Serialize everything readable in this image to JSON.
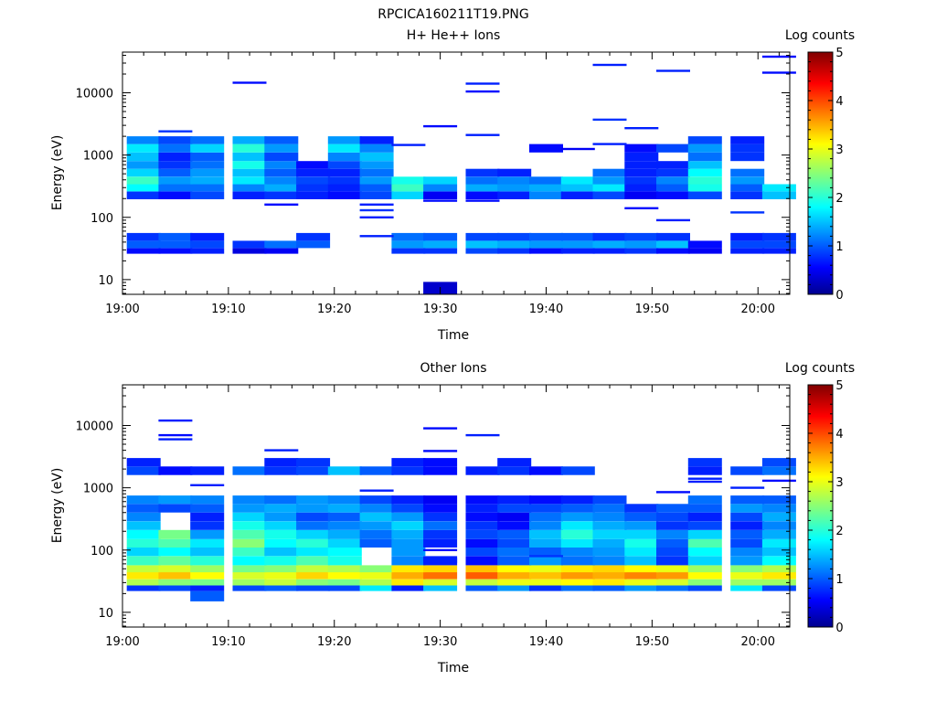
{
  "page": {
    "title": "RPCICA160211T19.PNG"
  },
  "colormap": {
    "name": "jet",
    "stops": [
      "#00008f",
      "#0000ff",
      "#00ffff",
      "#ffff00",
      "#ff0000",
      "#800000"
    ]
  },
  "chart_data": [
    {
      "type": "heatmap",
      "title": "H+ He++ Ions",
      "xlabel": "Time",
      "ylabel": "Energy (eV)",
      "y_scale": "log",
      "xlim": [
        "19:00",
        "20:03"
      ],
      "ylim": [
        5.8,
        45000
      ],
      "x_ticks": [
        "19:00",
        "19:10",
        "19:20",
        "19:30",
        "19:40",
        "19:50",
        "20:00"
      ],
      "y_ticks": [
        "10",
        "100",
        "1000",
        "10000"
      ],
      "colorbar": {
        "label": "Log counts",
        "min": 0,
        "max": 5,
        "ticks": [
          "0",
          "1",
          "2",
          "3",
          "4",
          "5"
        ]
      },
      "time_bins": [
        "19:02",
        "19:05",
        "19:08",
        "19:12",
        "19:15",
        "19:18",
        "19:21",
        "19:24",
        "19:27",
        "19:30",
        "19:34",
        "19:37",
        "19:40",
        "19:43",
        "19:46",
        "19:49",
        "19:52",
        "19:55",
        "19:59",
        "20:02"
      ],
      "energy_bands": [
        {
          "e": [
            26,
            32
          ],
          "v": [
            0.6,
            0.6,
            0.7,
            0.4,
            0.5,
            null,
            null,
            null,
            0.8,
            0.8,
            0.9,
            0.8,
            0.6,
            0.7,
            0.7,
            0.8,
            0.6,
            0.5,
            0.7,
            0.7
          ]
        },
        {
          "e": [
            32,
            42
          ],
          "v": [
            1.0,
            1.0,
            0.9,
            0.8,
            1.1,
            1.0,
            null,
            null,
            1.3,
            1.4,
            1.5,
            1.4,
            1.3,
            1.3,
            1.4,
            1.3,
            1.5,
            0.6,
            0.9,
            0.9
          ]
        },
        {
          "e": [
            42,
            56
          ],
          "v": [
            0.8,
            1.0,
            0.7,
            null,
            null,
            0.8,
            null,
            null,
            1.1,
            1.0,
            0.9,
            0.9,
            1.0,
            1.0,
            0.8,
            0.9,
            0.8,
            null,
            0.7,
            0.8
          ]
        },
        {
          "e": [
            195,
            260
          ],
          "v": [
            0.8,
            0.6,
            0.9,
            0.7,
            0.8,
            0.7,
            0.6,
            0.9,
            1.6,
            0.5,
            0.6,
            0.7,
            1.2,
            0.7,
            0.9,
            0.5,
            0.6,
            0.9,
            0.8,
            1.5
          ]
        },
        {
          "e": [
            260,
            340
          ],
          "v": [
            1.8,
            1.1,
            1.1,
            1.2,
            1.4,
            0.8,
            0.7,
            1.0,
            2.1,
            1.2,
            1.4,
            1.3,
            1.4,
            1.5,
            1.7,
            0.7,
            1.0,
            1.9,
            1.0,
            1.7
          ]
        },
        {
          "e": [
            340,
            450
          ],
          "v": [
            2.1,
            1.3,
            1.4,
            1.7,
            1.2,
            0.9,
            0.8,
            1.3,
            1.9,
            1.6,
            1.1,
            1.2,
            1.1,
            1.7,
            1.3,
            0.8,
            1.2,
            2.0,
            1.3,
            null
          ]
        },
        {
          "e": [
            450,
            600
          ],
          "v": [
            1.6,
            1.0,
            1.3,
            1.5,
            1.0,
            0.7,
            0.7,
            1.1,
            null,
            null,
            0.8,
            0.7,
            null,
            null,
            1.1,
            0.7,
            0.8,
            1.8,
            1.1,
            null
          ]
        },
        {
          "e": [
            600,
            800
          ],
          "v": [
            1.3,
            0.8,
            1.1,
            1.9,
            1.2,
            0.6,
            0.9,
            1.3,
            null,
            null,
            null,
            null,
            null,
            null,
            null,
            0.7,
            0.7,
            1.5,
            null,
            null
          ]
        },
        {
          "e": [
            800,
            1100
          ],
          "v": [
            1.5,
            0.7,
            1.0,
            1.5,
            0.9,
            null,
            1.2,
            1.5,
            null,
            null,
            null,
            null,
            null,
            null,
            null,
            0.7,
            null,
            1.1,
            0.8,
            null
          ]
        },
        {
          "e": [
            1100,
            1500
          ],
          "v": [
            1.7,
            1.1,
            1.6,
            2.0,
            1.3,
            null,
            1.7,
            1.2,
            null,
            null,
            null,
            null,
            0.6,
            null,
            null,
            0.6,
            0.9,
            1.3,
            0.8,
            null
          ]
        },
        {
          "e": [
            1500,
            2000
          ],
          "v": [
            1.2,
            0.9,
            1.1,
            1.4,
            1.0,
            null,
            1.3,
            0.7,
            null,
            null,
            null,
            null,
            null,
            null,
            null,
            null,
            null,
            0.9,
            0.7,
            null
          ]
        }
      ],
      "lines": [
        {
          "t": "19:05",
          "e": 2400,
          "v": 0.8
        },
        {
          "t": "19:12",
          "e": 14500,
          "v": 0.6
        },
        {
          "t": "19:30",
          "e": 2900,
          "v": 0.6
        },
        {
          "t": "19:34",
          "e": 14000,
          "v": 0.7
        },
        {
          "t": "19:34",
          "e": 10500,
          "v": 0.6
        },
        {
          "t": "19:34",
          "e": 2100,
          "v": 0.7
        },
        {
          "t": "19:46",
          "e": 28000,
          "v": 0.7
        },
        {
          "t": "19:46",
          "e": 3700,
          "v": 0.8
        },
        {
          "t": "19:46",
          "e": 1500,
          "v": 0.7
        },
        {
          "t": "19:49",
          "e": 2700,
          "v": 0.7
        },
        {
          "t": "19:52",
          "e": 22500,
          "v": 0.7
        },
        {
          "t": "19:59",
          "e": 120,
          "v": 0.8
        },
        {
          "t": "20:02",
          "e": 38000,
          "v": 0.6
        },
        {
          "t": "20:02",
          "e": 21000,
          "v": 0.6
        },
        {
          "t": "19:24",
          "e": 130,
          "v": 0.8
        },
        {
          "t": "19:24",
          "e": 100,
          "v": 0.7
        },
        {
          "t": "19:27",
          "e": 1450,
          "v": 0.7
        },
        {
          "t": "19:43",
          "e": 1250,
          "v": 0.5
        },
        {
          "t": "19:49",
          "e": 140,
          "v": 0.6
        },
        {
          "t": "19:52",
          "e": 90,
          "v": 0.7
        },
        {
          "t": "19:30",
          "e": 185,
          "v": 0.6
        },
        {
          "t": "19:34",
          "e": 185,
          "v": 0.6
        },
        {
          "t": "19:15",
          "e": 160,
          "v": 0.6
        },
        {
          "t": "19:24",
          "e": 160,
          "v": 0.7
        },
        {
          "t": "19:24",
          "e": 50,
          "v": 0.7
        }
      ],
      "patches": [
        {
          "t": "19:30",
          "e": [
            5.8,
            9.2
          ],
          "v": 0.3
        }
      ]
    },
    {
      "type": "heatmap",
      "title": "Other Ions",
      "xlabel": "Time",
      "ylabel": "Energy (eV)",
      "y_scale": "log",
      "xlim": [
        "19:00",
        "20:03"
      ],
      "ylim": [
        5.8,
        45000
      ],
      "x_ticks": [
        "19:00",
        "19:10",
        "19:20",
        "19:30",
        "19:40",
        "19:50",
        "20:00"
      ],
      "y_ticks": [
        "10",
        "100",
        "1000",
        "10000"
      ],
      "colorbar": {
        "label": "Log counts",
        "min": 0,
        "max": 5,
        "ticks": [
          "0",
          "1",
          "2",
          "3",
          "4",
          "5"
        ]
      },
      "time_bins": [
        "19:02",
        "19:05",
        "19:08",
        "19:12",
        "19:15",
        "19:18",
        "19:21",
        "19:24",
        "19:27",
        "19:30",
        "19:34",
        "19:37",
        "19:40",
        "19:43",
        "19:46",
        "19:49",
        "19:52",
        "19:55",
        "19:59",
        "20:02"
      ],
      "energy_bands": [
        {
          "e": [
            22,
            27
          ],
          "v": [
            0.8,
            0.9,
            0.7,
            0.9,
            1.0,
            0.9,
            0.9,
            1.7,
            0.7,
            1.5,
            1.0,
            1.3,
            0.8,
            1.1,
            1.0,
            1.3,
            1.1,
            0.9,
            1.7,
            0.9
          ]
        },
        {
          "e": [
            27,
            34
          ],
          "v": [
            2.7,
            2.5,
            2.4,
            2.6,
            2.8,
            2.5,
            2.4,
            2.7,
            3.2,
            2.9,
            2.8,
            3.0,
            3.0,
            3.1,
            3.2,
            3.0,
            2.9,
            2.5,
            2.6,
            2.6
          ]
        },
        {
          "e": [
            34,
            44
          ],
          "v": [
            3.2,
            3.4,
            3.1,
            2.9,
            3.0,
            3.3,
            3.1,
            3.0,
            3.5,
            3.8,
            3.9,
            3.5,
            3.4,
            3.6,
            3.5,
            3.7,
            3.6,
            3.1,
            3.0,
            3.2
          ]
        },
        {
          "e": [
            44,
            57
          ],
          "v": [
            2.8,
            2.9,
            2.6,
            2.4,
            2.5,
            2.8,
            2.7,
            2.5,
            3.2,
            3.3,
            3.4,
            3.1,
            3.0,
            3.2,
            3.3,
            3.1,
            3.0,
            2.6,
            2.5,
            2.7
          ]
        },
        {
          "e": [
            57,
            80
          ],
          "v": [
            2.1,
            2.3,
            2.0,
            1.8,
            1.9,
            2.2,
            1.9,
            null,
            1.2,
            0.7,
            0.6,
            1.0,
            1.3,
            1.1,
            1.2,
            1.5,
            0.8,
            1.6,
            1.3,
            1.8
          ]
        },
        {
          "e": [
            80,
            110
          ],
          "v": [
            1.6,
            1.8,
            1.5,
            2.1,
            1.5,
            1.7,
            1.8,
            null,
            1.3,
            null,
            0.9,
            1.1,
            1.0,
            1.2,
            1.3,
            1.7,
            0.9,
            1.8,
            1.2,
            1.5
          ]
        },
        {
          "e": [
            110,
            150
          ],
          "v": [
            2.0,
            2.2,
            1.7,
            2.5,
            1.8,
            2.0,
            1.6,
            1.0,
            1.3,
            0.7,
            0.6,
            0.9,
            1.4,
            1.7,
            1.4,
            1.9,
            1.0,
            2.2,
            0.9,
            1.7
          ]
        },
        {
          "e": [
            150,
            210
          ],
          "v": [
            1.8,
            2.4,
            1.3,
            2.2,
            1.9,
            1.6,
            1.4,
            1.1,
            1.4,
            0.8,
            0.9,
            1.0,
            1.5,
            2.0,
            1.6,
            1.6,
            1.2,
            1.6,
            1.0,
            1.4
          ]
        },
        {
          "e": [
            210,
            290
          ],
          "v": [
            1.5,
            null,
            0.8,
            1.9,
            1.6,
            1.1,
            1.2,
            1.3,
            1.6,
            1.1,
            0.8,
            0.6,
            1.2,
            1.7,
            1.4,
            1.3,
            0.8,
            0.9,
            0.7,
            1.2
          ]
        },
        {
          "e": [
            290,
            400
          ],
          "v": [
            1.2,
            null,
            0.7,
            1.6,
            1.3,
            0.9,
            1.0,
            1.5,
            1.3,
            0.8,
            0.6,
            0.5,
            1.1,
            1.3,
            1.2,
            1.0,
            0.9,
            0.7,
            0.9,
            1.4
          ]
        },
        {
          "e": [
            400,
            550
          ],
          "v": [
            1.0,
            0.9,
            1.0,
            1.3,
            1.4,
            1.3,
            1.4,
            1.2,
            0.9,
            0.6,
            0.7,
            0.9,
            0.9,
            1.0,
            1.1,
            0.8,
            1.0,
            1.0,
            1.3,
            1.2
          ]
        },
        {
          "e": [
            550,
            750
          ],
          "v": [
            1.2,
            1.3,
            1.2,
            1.2,
            1.1,
            1.3,
            1.2,
            0.9,
            0.7,
            0.5,
            0.6,
            0.7,
            0.6,
            0.7,
            0.9,
            null,
            null,
            1.1,
            1.0,
            1.0
          ]
        },
        {
          "e": [
            1600,
            2200
          ],
          "v": [
            0.9,
            0.6,
            0.7,
            1.1,
            0.8,
            0.9,
            1.5,
            1.0,
            0.8,
            0.6,
            0.7,
            0.8,
            0.6,
            0.9,
            null,
            null,
            null,
            0.7,
            0.9,
            1.1
          ]
        },
        {
          "e": [
            2200,
            3000
          ],
          "v": [
            0.7,
            null,
            null,
            null,
            0.7,
            0.8,
            null,
            null,
            0.7,
            0.6,
            null,
            0.7,
            null,
            null,
            null,
            null,
            null,
            0.8,
            null,
            0.9
          ]
        }
      ],
      "lines": [
        {
          "t": "19:05",
          "e": 12000,
          "v": 0.7
        },
        {
          "t": "19:05",
          "e": 7000,
          "v": 0.6
        },
        {
          "t": "19:05",
          "e": 6000,
          "v": 0.7
        },
        {
          "t": "19:15",
          "e": 4000,
          "v": 0.7
        },
        {
          "t": "19:30",
          "e": 9000,
          "v": 0.6
        },
        {
          "t": "19:30",
          "e": 3900,
          "v": 0.6
        },
        {
          "t": "19:34",
          "e": 7000,
          "v": 0.7
        },
        {
          "t": "19:40",
          "e": 80,
          "v": 0.8
        },
        {
          "t": "19:30",
          "e": 100,
          "v": 0.6
        },
        {
          "t": "19:52",
          "e": 850,
          "v": 0.6
        },
        {
          "t": "19:55",
          "e": 1400,
          "v": 0.7
        },
        {
          "t": "19:55",
          "e": 1250,
          "v": 0.7
        },
        {
          "t": "20:02",
          "e": 1300,
          "v": 0.6
        },
        {
          "t": "19:59",
          "e": 1000,
          "v": 0.7
        },
        {
          "t": "19:24",
          "e": 900,
          "v": 0.7
        },
        {
          "t": "19:08",
          "e": 1100,
          "v": 0.7
        }
      ],
      "patches": [
        {
          "t": "19:08",
          "e": [
            15,
            22
          ],
          "v": 1.0
        },
        {
          "t": "19:30",
          "e": [
            62,
            75
          ],
          "v": 0.7
        }
      ]
    }
  ]
}
